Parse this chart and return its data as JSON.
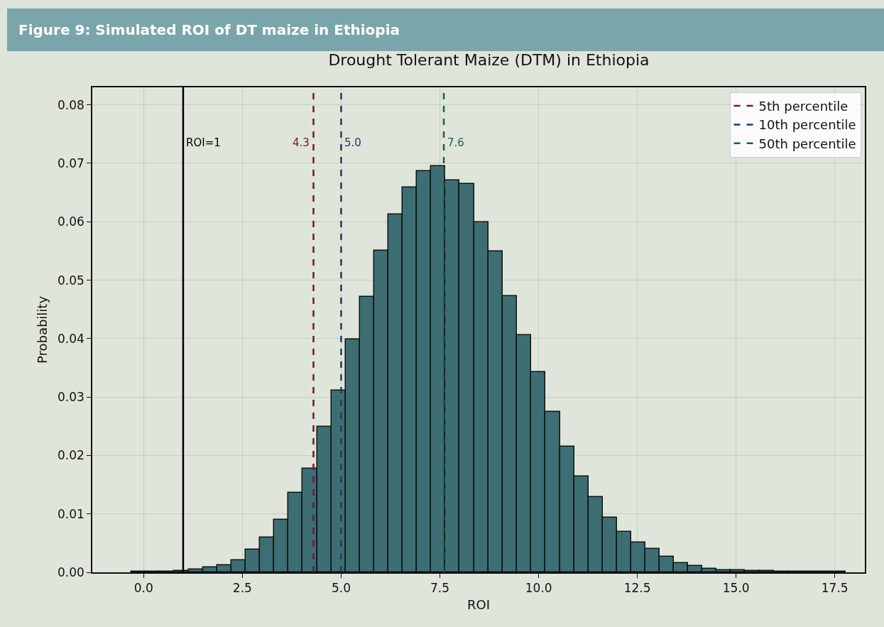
{
  "chart_data": {
    "type": "histogram",
    "title": "Figure 9: Simulated ROI of DT maize in Ethiopia",
    "subtitle": "Drought Tolerant Maize (DTM) in Ethiopia",
    "xlabel": "ROI",
    "ylabel": "Probability",
    "bins": [
      -0.31,
      0.05,
      0.41,
      0.77,
      1.14,
      1.5,
      1.86,
      2.22,
      2.58,
      2.94,
      3.31,
      3.67,
      4.03,
      4.39,
      4.75,
      5.11,
      5.47,
      5.84,
      6.2,
      6.56,
      6.92,
      7.28,
      7.64,
      8.0,
      8.37,
      8.73,
      9.09,
      9.45,
      9.81,
      10.17,
      10.54,
      10.9,
      11.26,
      11.62,
      11.98,
      12.34,
      12.7,
      13.07,
      13.43,
      13.79,
      14.15,
      14.51,
      14.87,
      15.23,
      15.6,
      15.96,
      16.32,
      16.68,
      17.04,
      17.4,
      17.77
    ],
    "values": [
      0.0001,
      0.0001,
      0.0001,
      0.0003,
      0.0005,
      0.0008,
      0.0012,
      0.0021,
      0.0039,
      0.0059,
      0.009,
      0.0136,
      0.0177,
      0.0249,
      0.0311,
      0.0399,
      0.0471,
      0.0551,
      0.0613,
      0.0659,
      0.0687,
      0.0695,
      0.0671,
      0.0665,
      0.0599,
      0.0549,
      0.0473,
      0.0406,
      0.0343,
      0.0275,
      0.0215,
      0.0164,
      0.0129,
      0.0094,
      0.0069,
      0.0051,
      0.004,
      0.0027,
      0.0016,
      0.0011,
      0.0006,
      0.0004,
      0.0004,
      0.0003,
      0.0002,
      0.0001,
      0.0001,
      0.0001,
      0.0001,
      0.0001
    ],
    "color": "#3d6e73",
    "series": [
      {
        "type": "line",
        "name": "5th percentile",
        "color": "#6b1a36",
        "x": [
          4.3,
          4.3
        ],
        "values": [
          0,
          0.083
        ],
        "line_style": "dashed"
      },
      {
        "type": "line",
        "name": "10th percentile",
        "color": "#1f3b63",
        "x": [
          5.0,
          5.0
        ],
        "values": [
          0,
          0.083
        ],
        "line_style": "dashed"
      },
      {
        "type": "line",
        "name": "50th percentile",
        "color": "#1f5e50",
        "x": [
          7.6,
          7.6
        ],
        "values": [
          0,
          0.083
        ],
        "line_style": "dashed"
      }
    ],
    "ref_lines": [
      {
        "axis": "x",
        "value": 1,
        "label": "ROI=1",
        "color": "#000000",
        "line_style": "solid"
      }
    ],
    "annotations": [
      {
        "text": "4.3",
        "x": 4.3,
        "y": 0.0735
      },
      {
        "text": "5.0",
        "x": 5.0,
        "y": 0.0735
      },
      {
        "text": "7.6",
        "x": 7.6,
        "y": 0.0735
      }
    ],
    "xlim": [
      -1.3,
      18.26
    ],
    "xticks": [
      {
        "value": 0,
        "label": "0.0"
      },
      2.5,
      {
        "value": 5,
        "label": "5.0"
      },
      7.5,
      {
        "value": 10,
        "label": "10.0"
      },
      12.5,
      {
        "value": 15,
        "label": "15.0"
      },
      17.5
    ],
    "ylim": [
      0,
      0.083
    ],
    "yticks": [
      {
        "value": 0,
        "label": "0.00"
      },
      {
        "value": 0.01,
        "label": "0.01"
      },
      {
        "value": 0.02,
        "label": "0.02"
      },
      {
        "value": 0.03,
        "label": "0.03"
      },
      {
        "value": 0.04,
        "label": "0.04"
      },
      {
        "value": 0.05,
        "label": "0.05"
      },
      {
        "value": 0.06,
        "label": "0.06"
      },
      {
        "value": 0.07,
        "label": "0.07"
      },
      {
        "value": 0.08,
        "label": "0.08"
      }
    ],
    "grid": true,
    "legend": "top right",
    "marker": "none"
  }
}
